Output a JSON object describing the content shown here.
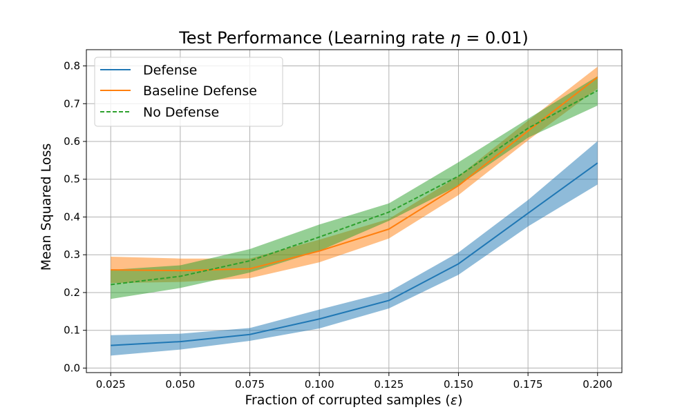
{
  "chart_data": {
    "type": "line",
    "title_main": "Test Performance (Learning rate ",
    "title_symbol": "η",
    "title_value": " = 0.01)",
    "xlabel_main": "Fraction of corrupted samples (",
    "xlabel_symbol": "ε",
    "xlabel_end": ")",
    "ylabel": "Mean Squared Loss",
    "x": [
      0.025,
      0.05,
      0.075,
      0.1,
      0.125,
      0.15,
      0.175,
      0.2
    ],
    "x_tick_labels": [
      "0.025",
      "0.050",
      "0.075",
      "0.100",
      "0.125",
      "0.150",
      "0.175",
      "0.200"
    ],
    "y_ticks": [
      0.0,
      0.1,
      0.2,
      0.3,
      0.4,
      0.5,
      0.6,
      0.7,
      0.8
    ],
    "y_tick_labels": [
      "0.0",
      "0.1",
      "0.2",
      "0.3",
      "0.4",
      "0.5",
      "0.6",
      "0.7",
      "0.8"
    ],
    "xlim": [
      0.01625,
      0.20875
    ],
    "ylim": [
      -0.012,
      0.843
    ],
    "grid": true,
    "legend_position": "top-left",
    "series": [
      {
        "name": "Defense",
        "color": "#1f77b4",
        "style": "solid",
        "values": [
          0.06,
          0.07,
          0.089,
          0.13,
          0.179,
          0.276,
          0.41,
          0.543
        ],
        "lower": [
          0.033,
          0.049,
          0.072,
          0.105,
          0.158,
          0.247,
          0.375,
          0.486
        ],
        "upper": [
          0.087,
          0.091,
          0.106,
          0.155,
          0.202,
          0.306,
          0.445,
          0.601
        ]
      },
      {
        "name": "Baseline Defense",
        "color": "#ff7f0e",
        "style": "solid",
        "values": [
          0.26,
          0.258,
          0.263,
          0.31,
          0.368,
          0.483,
          0.628,
          0.77
        ],
        "lower": [
          0.225,
          0.228,
          0.238,
          0.28,
          0.343,
          0.458,
          0.603,
          0.74
        ],
        "upper": [
          0.295,
          0.29,
          0.29,
          0.34,
          0.395,
          0.508,
          0.655,
          0.798
        ]
      },
      {
        "name": "No Defense",
        "color": "#2ca02c",
        "style": "dashed",
        "values": [
          0.221,
          0.243,
          0.284,
          0.347,
          0.413,
          0.508,
          0.635,
          0.735
        ],
        "lower": [
          0.183,
          0.212,
          0.253,
          0.31,
          0.39,
          0.483,
          0.61,
          0.695
        ],
        "upper": [
          0.26,
          0.272,
          0.315,
          0.38,
          0.436,
          0.545,
          0.66,
          0.773
        ]
      }
    ]
  }
}
